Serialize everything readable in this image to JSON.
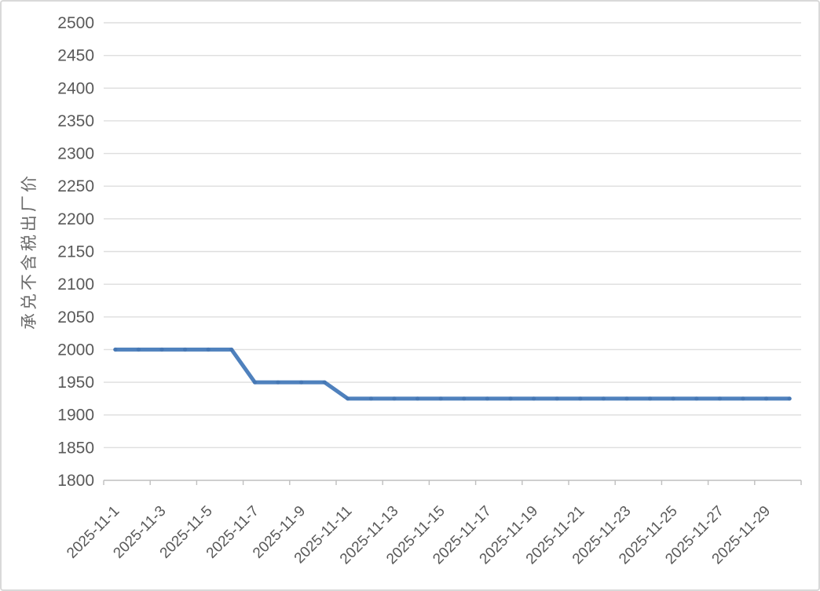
{
  "chart_data": {
    "type": "line",
    "title": "",
    "xlabel": "",
    "ylabel": "承兑不含税出厂价",
    "x": [
      "2025-11-1",
      "2025-11-2",
      "2025-11-3",
      "2025-11-4",
      "2025-11-5",
      "2025-11-6",
      "2025-11-7",
      "2025-11-8",
      "2025-11-9",
      "2025-11-10",
      "2025-11-11",
      "2025-11-12",
      "2025-11-13",
      "2025-11-14",
      "2025-11-15",
      "2025-11-16",
      "2025-11-17",
      "2025-11-18",
      "2025-11-19",
      "2025-11-20",
      "2025-11-21",
      "2025-11-22",
      "2025-11-23",
      "2025-11-24",
      "2025-11-25",
      "2025-11-26",
      "2025-11-27",
      "2025-11-28",
      "2025-11-29",
      "2025-11-30"
    ],
    "values": [
      2000,
      2000,
      2000,
      2000,
      2000,
      2000,
      1950,
      1950,
      1950,
      1950,
      1925,
      1925,
      1925,
      1925,
      1925,
      1925,
      1925,
      1925,
      1925,
      1925,
      1925,
      1925,
      1925,
      1925,
      1925,
      1925,
      1925,
      1925,
      1925,
      1925
    ],
    "ylim": [
      1800,
      2500
    ],
    "ytick_step": 50,
    "yticks": [
      1800,
      1850,
      1900,
      1950,
      2000,
      2050,
      2100,
      2150,
      2200,
      2250,
      2300,
      2350,
      2400,
      2450,
      2500
    ],
    "xtick_labels": [
      "2025-11-1",
      "2025-11-3",
      "2025-11-5",
      "2025-11-7",
      "2025-11-9",
      "2025-11-11",
      "2025-11-13",
      "2025-11-15",
      "2025-11-17",
      "2025-11-19",
      "2025-11-21",
      "2025-11-23",
      "2025-11-25",
      "2025-11-27",
      "2025-11-29"
    ],
    "xtick_label_every": 2,
    "grid": true,
    "legend": "none",
    "colors": {
      "line": "#4f81bd",
      "marker": "#3a6ba8",
      "grid": "#dedede",
      "axis": "#bfbfbf",
      "text": "#595959"
    }
  }
}
